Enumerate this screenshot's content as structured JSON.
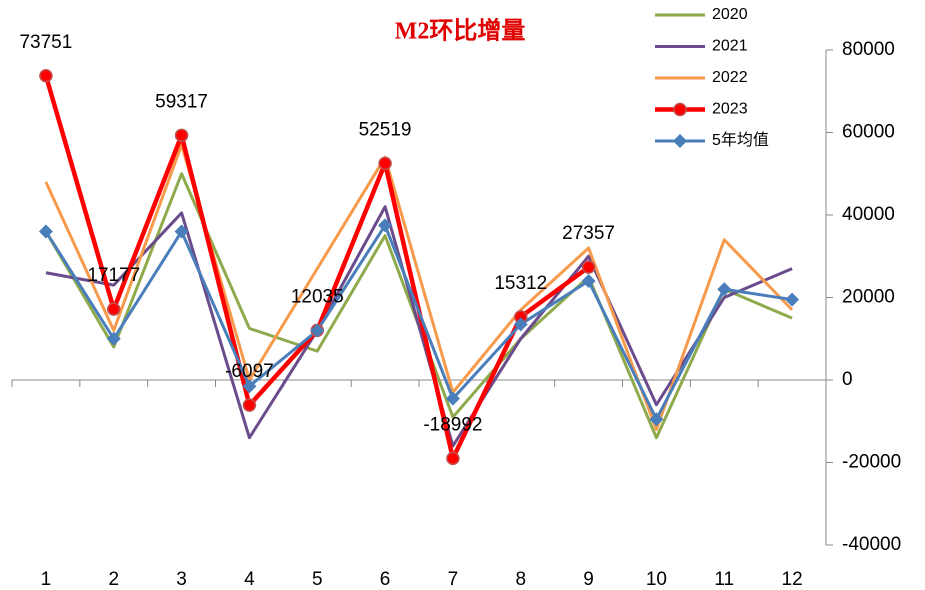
{
  "chart_data": {
    "type": "line",
    "title": "M2环比增量",
    "categories": [
      "1",
      "2",
      "3",
      "4",
      "5",
      "6",
      "7",
      "8",
      "9",
      "10",
      "11",
      "12"
    ],
    "series": [
      {
        "name": "2020",
        "color": "#8eaa4c",
        "values": [
          36000,
          8000,
          50000,
          12500,
          7000,
          35000,
          -9000,
          10000,
          25000,
          -14000,
          22000,
          15000
        ]
      },
      {
        "name": "2021",
        "color": "#6a4c8c",
        "values": [
          26000,
          23000,
          40500,
          -14000,
          12000,
          42000,
          -16000,
          10000,
          30000,
          -6000,
          20000,
          27000
        ]
      },
      {
        "name": "2022",
        "color": "#f79a4c",
        "values": [
          48000,
          12000,
          57000,
          0,
          27000,
          54000,
          -3000,
          17000,
          32000,
          -12000,
          34000,
          17000
        ]
      },
      {
        "name": "2023",
        "color": "#ff0000",
        "marker": "circle",
        "show_value_labels": true,
        "values": [
          73751,
          17177,
          59317,
          -6097,
          12035,
          52519,
          -18992,
          15312,
          27357,
          null,
          null,
          null
        ]
      },
      {
        "name": "5年均值",
        "color": "#4a7ebb",
        "marker": "diamond",
        "values": [
          36000,
          10000,
          36000,
          -1500,
          12000,
          37500,
          -4500,
          13500,
          24000,
          -9500,
          22000,
          19500
        ]
      }
    ],
    "ylim": [
      -40000,
      80000
    ],
    "yticks": [
      -40000,
      -20000,
      0,
      20000,
      40000,
      60000,
      80000
    ],
    "y_axis_side": "right",
    "legend": "top-right"
  }
}
